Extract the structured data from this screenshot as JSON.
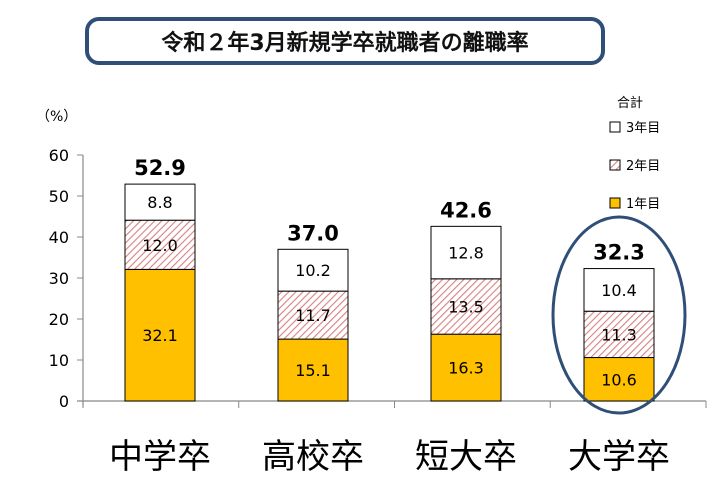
{
  "chart_data": {
    "type": "bar",
    "stacked": true,
    "title": "令和２年3月新規学卒就職者の離職率",
    "ylabel": "（%）",
    "ylim": [
      0,
      60
    ],
    "yticks": [
      0,
      10,
      20,
      30,
      40,
      50,
      60
    ],
    "categories": [
      "中学卒",
      "高校卒",
      "短大卒",
      "大学卒"
    ],
    "series": [
      {
        "name": "1年目",
        "color": "#ffc000",
        "pattern": "solid",
        "values": [
          32.1,
          15.1,
          16.3,
          10.6
        ]
      },
      {
        "name": "2年目",
        "color": "#e8a0a0",
        "pattern": "hatch",
        "values": [
          12.0,
          11.7,
          13.5,
          11.3
        ]
      },
      {
        "name": "3年目",
        "color": "#ffffff",
        "pattern": "solid",
        "values": [
          8.8,
          10.2,
          12.8,
          10.4
        ]
      }
    ],
    "totals": [
      "52.9",
      "37.0",
      "42.6",
      "32.3"
    ],
    "segment_labels": [
      [
        "32.1",
        "15.1",
        "16.3",
        "10.6"
      ],
      [
        "12.0",
        "11.7",
        "13.5",
        "11.3"
      ],
      [
        "8.8",
        "10.2",
        "12.8",
        "10.4"
      ]
    ],
    "legend": {
      "title": "合計",
      "placement": "top-right"
    },
    "highlight": {
      "category": "大学卒",
      "shape": "ellipse",
      "color": "#2f4f78"
    },
    "grid": false
  }
}
